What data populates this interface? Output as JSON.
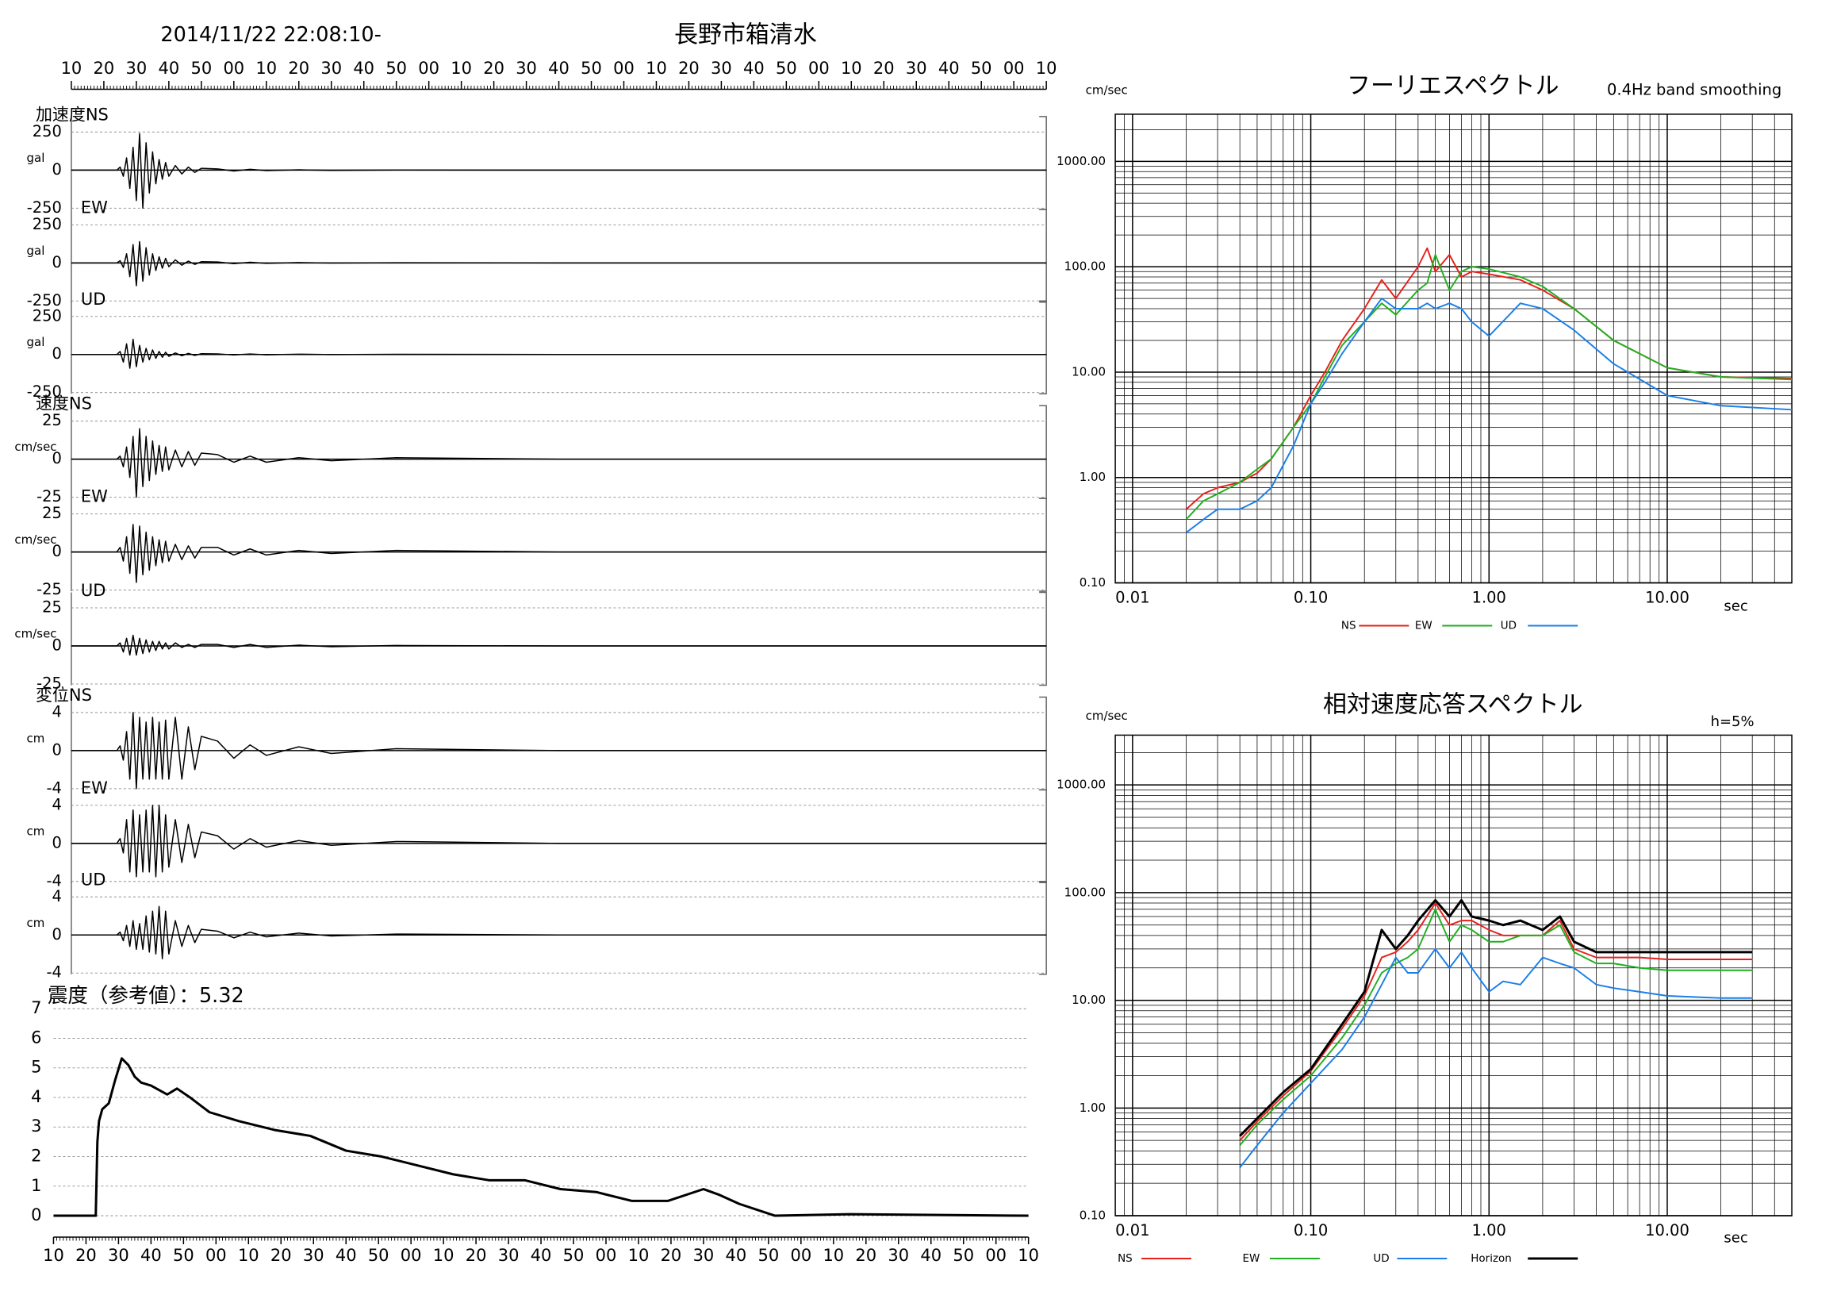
{
  "chart_data": [
    {
      "type": "line",
      "title": "長野市箱清水",
      "subtitle": "2014/11/22 22:08:10-",
      "x": [
        0,
        14,
        15,
        16,
        17,
        18,
        19,
        20,
        21,
        22,
        23,
        24,
        25,
        26,
        27,
        28,
        29,
        30,
        32,
        34,
        36,
        38,
        40,
        45,
        50,
        55,
        60,
        70,
        80,
        100,
        150,
        300
      ],
      "xlim": [
        0,
        300
      ],
      "xticks": [
        {
          "value": 0,
          "label": "10"
        },
        {
          "value": 10,
          "label": "20"
        },
        {
          "value": 20,
          "label": "30"
        },
        {
          "value": 30,
          "label": "40"
        },
        {
          "value": 40,
          "label": "50"
        },
        {
          "value": 50,
          "label": "00"
        },
        {
          "value": 60,
          "label": "10"
        },
        {
          "value": 70,
          "label": "20"
        },
        {
          "value": 80,
          "label": "30"
        },
        {
          "value": 90,
          "label": "40"
        },
        {
          "value": 100,
          "label": "50"
        },
        {
          "value": 110,
          "label": "00"
        },
        {
          "value": 120,
          "label": "10"
        },
        {
          "value": 130,
          "label": "20"
        },
        {
          "value": 140,
          "label": "30"
        },
        {
          "value": 150,
          "label": "40"
        },
        {
          "value": 160,
          "label": "50"
        },
        {
          "value": 170,
          "label": "00"
        },
        {
          "value": 180,
          "label": "10"
        },
        {
          "value": 190,
          "label": "20"
        },
        {
          "value": 200,
          "label": "30"
        },
        {
          "value": 210,
          "label": "40"
        },
        {
          "value": 220,
          "label": "50"
        },
        {
          "value": 230,
          "label": "00"
        },
        {
          "value": 240,
          "label": "10"
        },
        {
          "value": 250,
          "label": "20"
        },
        {
          "value": 260,
          "label": "30"
        },
        {
          "value": 270,
          "label": "40"
        },
        {
          "value": 280,
          "label": "50"
        },
        {
          "value": 290,
          "label": "00"
        },
        {
          "value": 300,
          "label": "10"
        }
      ],
      "panels": [
        {
          "name": "加速度NS",
          "unit": "gal",
          "ylim": [
            -250,
            250
          ],
          "yticks": [
            -250,
            0,
            250
          ],
          "values": [
            0,
            0,
            20,
            -40,
            80,
            -120,
            150,
            -200,
            240,
            -250,
            180,
            -150,
            120,
            -90,
            70,
            -60,
            50,
            -40,
            30,
            -25,
            20,
            -15,
            12,
            8,
            -6,
            5,
            -3,
            2,
            -2,
            1,
            0,
            0
          ]
        },
        {
          "name": "EW",
          "unit": "gal",
          "ylim": [
            -250,
            250
          ],
          "yticks": [
            -250,
            0,
            250
          ],
          "values": [
            0,
            0,
            15,
            -30,
            60,
            -90,
            120,
            -150,
            140,
            -120,
            100,
            -80,
            60,
            -50,
            40,
            -35,
            30,
            -25,
            20,
            -15,
            12,
            -10,
            8,
            6,
            -5,
            4,
            -3,
            2,
            -1,
            1,
            0,
            0
          ]
        },
        {
          "name": "UD",
          "unit": "gal",
          "ylim": [
            -250,
            250
          ],
          "yticks": [
            -250,
            0,
            250
          ],
          "values": [
            0,
            0,
            20,
            -50,
            70,
            -90,
            100,
            -80,
            60,
            -50,
            40,
            -35,
            30,
            -25,
            20,
            -18,
            15,
            -12,
            10,
            -8,
            7,
            -6,
            5,
            4,
            -3,
            3,
            -2,
            2,
            -1,
            1,
            0,
            0
          ]
        },
        {
          "name": "速度NS",
          "unit": "cm/sec",
          "ylim": [
            -25,
            25
          ],
          "yticks": [
            -25,
            0,
            25
          ],
          "values": [
            0,
            0,
            2,
            -5,
            8,
            -12,
            15,
            -25,
            20,
            -18,
            15,
            -14,
            12,
            -10,
            9,
            -8,
            8,
            -7,
            6,
            -5,
            5,
            -4,
            4,
            3,
            -2,
            2,
            -2,
            1,
            -1,
            1,
            0,
            0
          ]
        },
        {
          "name": "EW",
          "unit": "cm/sec",
          "ylim": [
            -25,
            25
          ],
          "yticks": [
            -25,
            0,
            25
          ],
          "values": [
            0,
            0,
            3,
            -6,
            10,
            -14,
            18,
            -20,
            17,
            -15,
            13,
            -12,
            10,
            -9,
            8,
            -7,
            7,
            -6,
            5,
            -5,
            4,
            -4,
            3,
            3,
            -2,
            2,
            -2,
            1,
            -1,
            1,
            0,
            0
          ]
        },
        {
          "name": "UD",
          "unit": "cm/sec",
          "ylim": [
            -25,
            25
          ],
          "yticks": [
            -25,
            0,
            25
          ],
          "values": [
            0,
            0,
            2,
            -4,
            5,
            -6,
            7,
            -6,
            5,
            -5,
            4,
            -4,
            3,
            -3,
            3,
            -2,
            2,
            -2,
            2,
            -1,
            1,
            -1,
            1,
            1,
            -1,
            1,
            -1,
            0.5,
            -0.5,
            0.3,
            0,
            0
          ]
        },
        {
          "name": "変位NS",
          "unit": "cm",
          "ylim": [
            -4,
            4
          ],
          "yticks": [
            -4,
            0,
            4
          ],
          "values": [
            0,
            0,
            0.5,
            -1,
            2,
            -3,
            4,
            -4,
            3.5,
            -3,
            3,
            -3,
            3.5,
            -3,
            3,
            -3,
            3.2,
            -3,
            3.5,
            -3,
            2.5,
            -2,
            1.5,
            1,
            -0.8,
            0.6,
            -0.5,
            0.4,
            -0.3,
            0.2,
            0,
            0
          ]
        },
        {
          "name": "EW",
          "unit": "cm",
          "ylim": [
            -4,
            4
          ],
          "yticks": [
            -4,
            0,
            4
          ],
          "values": [
            0,
            0,
            0.5,
            -1,
            2.5,
            -3,
            3.5,
            -3.5,
            3,
            -3,
            3.5,
            -3,
            4,
            -3.5,
            4,
            -3,
            3,
            -2.5,
            2.5,
            -2,
            2,
            -1.5,
            1.2,
            0.8,
            -0.6,
            0.5,
            -0.4,
            0.3,
            -0.2,
            0.2,
            0,
            0
          ]
        },
        {
          "name": "UD",
          "unit": "cm",
          "ylim": [
            -4,
            4
          ],
          "yticks": [
            -4,
            0,
            4
          ],
          "values": [
            0,
            0,
            0.3,
            -0.6,
            1,
            -1.2,
            1.5,
            -1.5,
            1.2,
            -1.5,
            2,
            -1.8,
            2.5,
            -2,
            3,
            -2.5,
            2.5,
            -2,
            1.5,
            -1.2,
            1,
            -0.8,
            0.6,
            0.4,
            -0.3,
            0.3,
            -0.2,
            0.2,
            -0.1,
            0.1,
            0,
            0
          ]
        }
      ]
    },
    {
      "type": "line",
      "title": "震度（参考値）：5.32",
      "color": "#000000",
      "grid": true,
      "x": [
        0,
        13,
        13.5,
        14,
        15,
        17,
        19,
        21,
        23,
        25,
        27,
        30,
        35,
        38,
        42,
        48,
        57,
        68,
        79,
        90,
        101,
        112,
        123,
        134,
        145,
        156,
        167,
        178,
        189,
        200,
        205,
        211,
        222,
        245,
        300
      ],
      "values": [
        0,
        0,
        2.5,
        3.2,
        3.6,
        3.8,
        4.6,
        5.32,
        5.1,
        4.7,
        4.5,
        4.4,
        4.1,
        4.3,
        4.0,
        3.5,
        3.2,
        2.9,
        2.7,
        2.2,
        2.0,
        1.7,
        1.4,
        1.2,
        1.2,
        0.9,
        0.8,
        0.5,
        0.5,
        0.9,
        0.7,
        0.4,
        0.0,
        0.05,
        0
      ],
      "xlim": [
        0,
        300
      ],
      "ylim": [
        0,
        7
      ],
      "yticks": [
        0,
        1,
        2,
        3,
        4,
        5,
        6,
        7
      ],
      "xticks": [
        {
          "value": 0,
          "label": "10"
        },
        {
          "value": 10,
          "label": "20"
        },
        {
          "value": 20,
          "label": "30"
        },
        {
          "value": 30,
          "label": "40"
        },
        {
          "value": 40,
          "label": "50"
        },
        {
          "value": 50,
          "label": "00"
        },
        {
          "value": 60,
          "label": "10"
        },
        {
          "value": 70,
          "label": "20"
        },
        {
          "value": 80,
          "label": "30"
        },
        {
          "value": 90,
          "label": "40"
        },
        {
          "value": 100,
          "label": "50"
        },
        {
          "value": 110,
          "label": "00"
        },
        {
          "value": 120,
          "label": "10"
        },
        {
          "value": 130,
          "label": "20"
        },
        {
          "value": 140,
          "label": "30"
        },
        {
          "value": 150,
          "label": "40"
        },
        {
          "value": 160,
          "label": "50"
        },
        {
          "value": 170,
          "label": "00"
        },
        {
          "value": 180,
          "label": "10"
        },
        {
          "value": 190,
          "label": "20"
        },
        {
          "value": 200,
          "label": "30"
        },
        {
          "value": 210,
          "label": "40"
        },
        {
          "value": 220,
          "label": "50"
        },
        {
          "value": 230,
          "label": "00"
        },
        {
          "value": 240,
          "label": "10"
        },
        {
          "value": 250,
          "label": "20"
        },
        {
          "value": 260,
          "label": "30"
        },
        {
          "value": 270,
          "label": "40"
        },
        {
          "value": 280,
          "label": "50"
        },
        {
          "value": 290,
          "label": "00"
        },
        {
          "value": 300,
          "label": "10"
        }
      ]
    },
    {
      "type": "line",
      "title": "フーリエスペクトル",
      "subtitle": "0.4Hz band smoothing",
      "ylabel": "cm/sec",
      "xlabel": "sec",
      "log_scale": true,
      "grid": true,
      "xlim": [
        0.008,
        50
      ],
      "ylim": [
        0.1,
        2800
      ],
      "xticks": [
        0.01,
        {
          "value": 0.1,
          "label": "0.10"
        },
        {
          "value": 1,
          "label": "1.00"
        },
        {
          "value": 10,
          "label": "10.00"
        }
      ],
      "yticks": [
        {
          "value": 0.1,
          "label": "0.10"
        },
        {
          "value": 1,
          "label": "1.00"
        },
        {
          "value": 10,
          "label": "10.00"
        },
        {
          "value": 100,
          "label": "100.00"
        },
        {
          "value": 1000,
          "label": "1000.00"
        }
      ],
      "x": [
        0.02,
        0.025,
        0.03,
        0.04,
        0.05,
        0.06,
        0.08,
        0.1,
        0.12,
        0.15,
        0.2,
        0.25,
        0.3,
        0.4,
        0.45,
        0.5,
        0.6,
        0.7,
        0.8,
        1.0,
        1.5,
        2,
        3,
        5,
        10,
        20,
        50
      ],
      "series": [
        {
          "name": "NS",
          "color": "#e8201c",
          "values": [
            0.5,
            0.7,
            0.8,
            0.9,
            1.1,
            1.5,
            3,
            6,
            10,
            20,
            40,
            75,
            50,
            100,
            150,
            90,
            130,
            80,
            90,
            85,
            75,
            60,
            40,
            20,
            11,
            9,
            8.7
          ]
        },
        {
          "name": "EW",
          "color": "#1fb01f",
          "values": [
            0.4,
            0.6,
            0.7,
            0.9,
            1.2,
            1.5,
            3,
            5,
            9,
            18,
            30,
            45,
            35,
            60,
            70,
            130,
            60,
            90,
            100,
            95,
            80,
            65,
            40,
            20,
            11,
            9,
            8.5
          ]
        },
        {
          "name": "UD",
          "color": "#1a7fe8",
          "values": [
            0.3,
            0.4,
            0.5,
            0.5,
            0.6,
            0.8,
            2,
            5,
            8,
            15,
            30,
            50,
            40,
            40,
            45,
            40,
            45,
            40,
            30,
            22,
            45,
            40,
            25,
            12,
            6,
            4.8,
            4.4
          ]
        }
      ]
    },
    {
      "type": "line",
      "title": "相対速度応答スペクトル",
      "subtitle": "h=5%",
      "ylabel": "cm/sec",
      "xlabel": "sec",
      "log_scale": true,
      "grid": true,
      "xlim": [
        0.008,
        50
      ],
      "ylim": [
        0.1,
        2900
      ],
      "xticks": [
        0.01,
        {
          "value": 0.1,
          "label": "0.10"
        },
        {
          "value": 1,
          "label": "1.00"
        },
        {
          "value": 10,
          "label": "10.00"
        }
      ],
      "yticks": [
        {
          "value": 0.1,
          "label": "0.10"
        },
        {
          "value": 1,
          "label": "1.00"
        },
        {
          "value": 10,
          "label": "10.00"
        },
        {
          "value": 100,
          "label": "100.00"
        },
        {
          "value": 1000,
          "label": "1000.00"
        }
      ],
      "x": [
        0.04,
        0.05,
        0.07,
        0.1,
        0.15,
        0.2,
        0.25,
        0.3,
        0.35,
        0.4,
        0.5,
        0.6,
        0.7,
        0.8,
        1,
        1.2,
        1.5,
        2,
        2.5,
        3,
        4,
        5,
        7,
        10,
        20,
        30
      ],
      "series": [
        {
          "name": "NS",
          "color": "#e8201c",
          "values": [
            0.5,
            0.75,
            1.3,
            2.2,
            5.5,
            11,
            25,
            28,
            35,
            45,
            80,
            50,
            55,
            55,
            45,
            40,
            40,
            40,
            55,
            30,
            25,
            25,
            25,
            24,
            24,
            24
          ]
        },
        {
          "name": "EW",
          "color": "#1fb01f",
          "values": [
            0.45,
            0.7,
            1.2,
            2,
            4.5,
            9,
            18,
            22,
            25,
            30,
            70,
            35,
            50,
            45,
            35,
            35,
            40,
            40,
            50,
            28,
            22,
            22,
            20,
            19,
            19,
            19
          ]
        },
        {
          "name": "UD",
          "color": "#1a7fe8",
          "values": [
            0.28,
            0.45,
            0.9,
            1.7,
            3.5,
            7,
            14,
            25,
            18,
            18,
            30,
            20,
            28,
            20,
            12,
            15,
            14,
            25,
            22,
            20,
            14,
            13,
            12,
            11,
            10.5,
            10.5
          ]
        },
        {
          "name": "Horizon",
          "color": "#000000",
          "values": [
            0.55,
            0.8,
            1.4,
            2.3,
            6,
            12,
            45,
            30,
            40,
            55,
            85,
            60,
            85,
            60,
            55,
            50,
            55,
            45,
            60,
            35,
            28,
            28,
            28,
            28,
            28,
            28
          ]
        }
      ]
    }
  ]
}
